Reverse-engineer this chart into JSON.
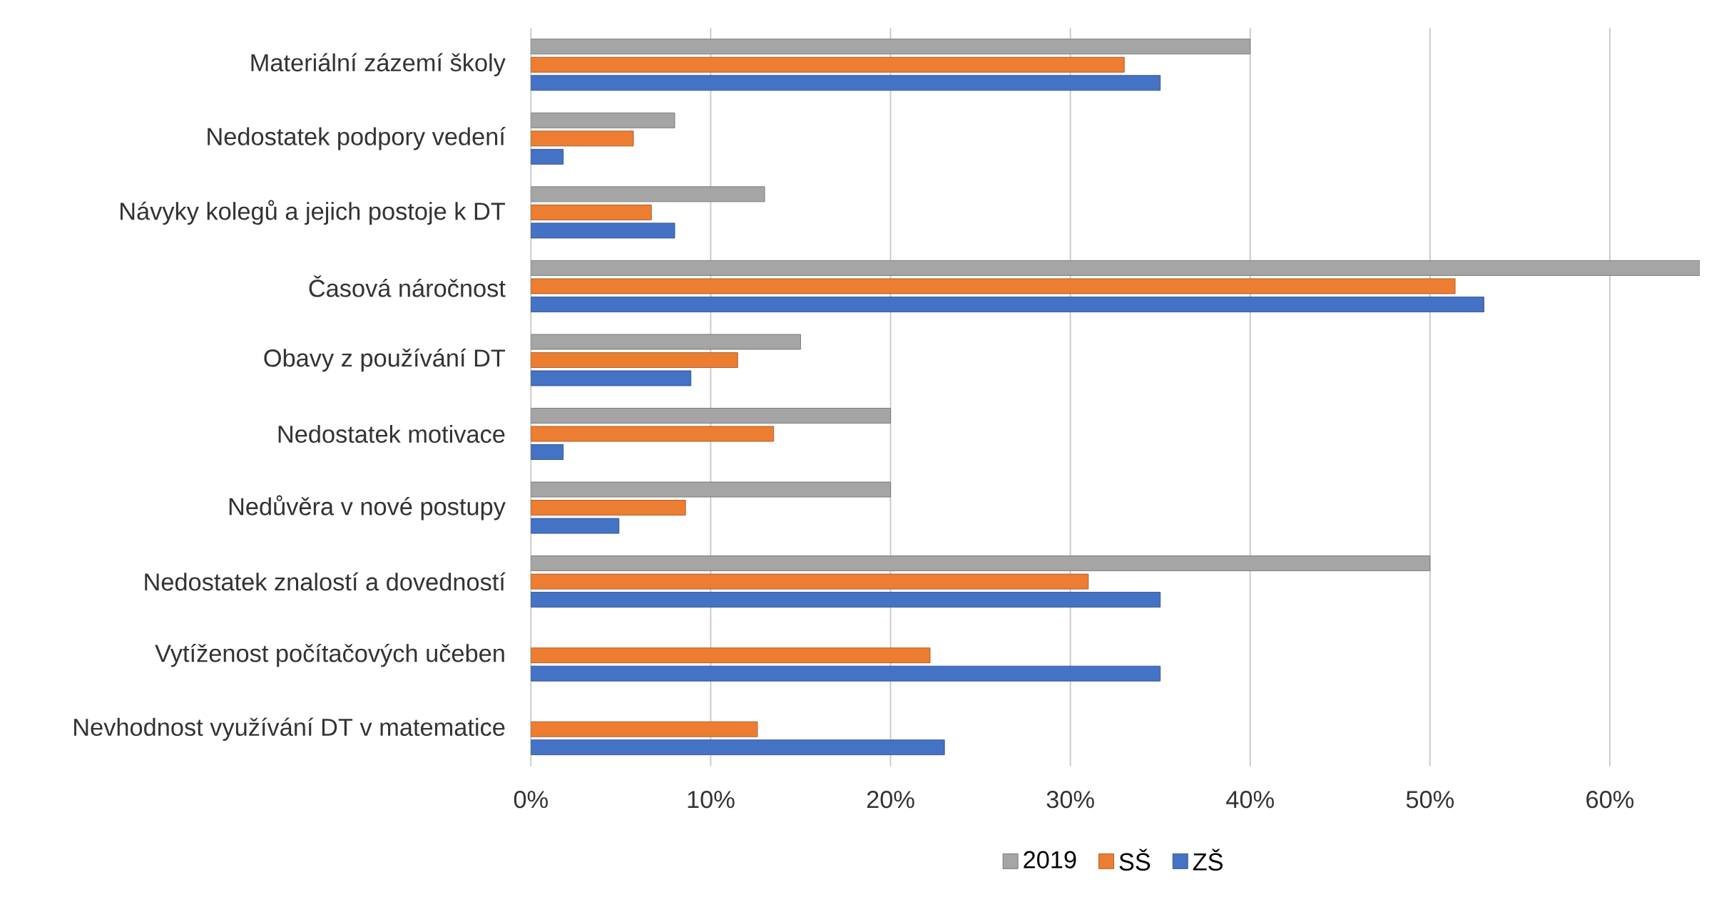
{
  "chart_data": {
    "type": "bar",
    "orientation": "horizontal",
    "categories": [
      "Materiální zázemí školy",
      "Nedostatek podpory vedení",
      "Návyky kolegů a jejich postoje k DT",
      "Časová náročnost",
      "Obavy z používání DT",
      "Nedostatek motivace",
      "Nedůvěra v nové  postupy",
      "Nedostatek znalostí a dovedností",
      "Vytíženost počítačových učeben",
      "Nevhodnost využívání DT v matematice"
    ],
    "series": [
      {
        "name": "2019",
        "color": "#a5a5a5",
        "values": [
          40,
          8,
          13,
          65,
          15,
          20,
          20,
          50,
          null,
          null
        ]
      },
      {
        "name": "SŠ",
        "color": "#ed7d31",
        "values": [
          33,
          5.7,
          6.7,
          51.4,
          11.5,
          13.5,
          8.6,
          31,
          22.2,
          12.6
        ]
      },
      {
        "name": "ZŠ",
        "color": "#4472c4",
        "values": [
          35,
          1.8,
          8,
          53,
          8.9,
          1.8,
          4.9,
          35,
          35,
          23
        ]
      }
    ],
    "xlim": [
      0,
      65
    ],
    "xticks": [
      {
        "value": 0,
        "label": "0%"
      },
      {
        "value": 10,
        "label": "10%"
      },
      {
        "value": 20,
        "label": "20%"
      },
      {
        "value": 30,
        "label": "30%"
      },
      {
        "value": 40,
        "label": "40%"
      },
      {
        "value": 50,
        "label": "50%"
      },
      {
        "value": 60,
        "label": "60%"
      }
    ],
    "grid": "x",
    "legend": "bottom"
  }
}
